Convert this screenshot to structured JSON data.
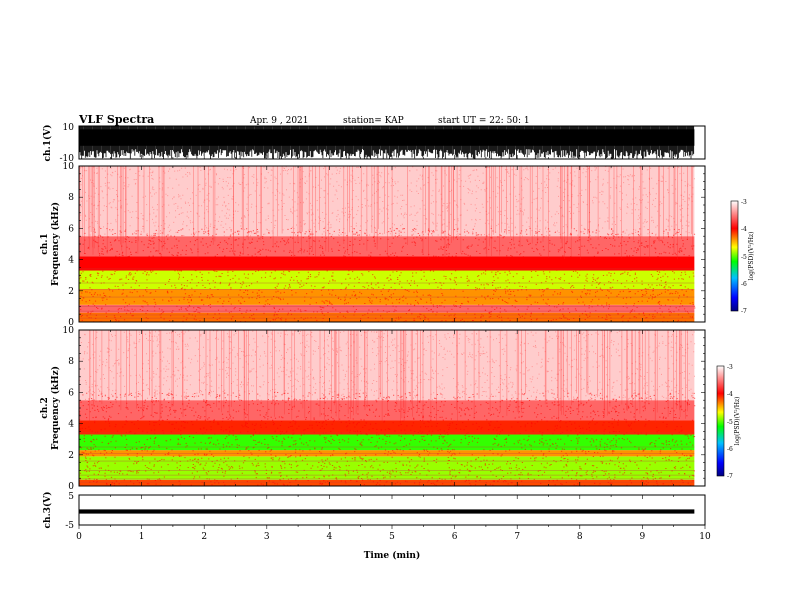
{
  "header": {
    "title": "VLF Spectra",
    "date": "Apr. 9 , 2021",
    "station": "station= KAP",
    "start_ut": "start UT =  22: 50: 1"
  },
  "chart_data": [
    {
      "type": "line",
      "panel": "ch1-waveform",
      "ylabel": "ch.1(V)",
      "ylim": [
        -10,
        10
      ],
      "ytick_labels": [
        "10",
        "-10"
      ],
      "xlim": [
        0,
        10
      ],
      "x_data_end": 9.83,
      "description_of_signal": "dense oscillating waveform, mostly saturated between about -5 and 10 V"
    },
    {
      "type": "heatmap",
      "panel": "ch1-spectrogram",
      "ylabel": "ch.1\nFrequency (kHz)",
      "ylabel_line1": "ch.1",
      "ylabel_line2": "Frequency (kHz)",
      "ylim": [
        0,
        10
      ],
      "yticks": [
        0,
        2,
        4,
        6,
        8,
        10
      ],
      "xlim": [
        0,
        10
      ],
      "x_data_end": 9.83,
      "colorbar": {
        "label": "log(PSD)(V²/Hz)",
        "range": [
          -7,
          -3
        ],
        "tick_labels": [
          "-3",
          "-4",
          "-5",
          "-6",
          "-7"
        ],
        "colors": [
          "#000080",
          "#0000ff",
          "#00c0ff",
          "#00ff00",
          "#ffff00",
          "#ff0000",
          "#ffffff"
        ]
      },
      "bands_khz": [
        {
          "from": 0.0,
          "to": 0.6,
          "level": -4.3
        },
        {
          "from": 0.6,
          "to": 1.1,
          "level": -3.6
        },
        {
          "from": 1.1,
          "to": 2.1,
          "level": -4.4
        },
        {
          "from": 2.1,
          "to": 3.3,
          "level": -4.8
        },
        {
          "from": 3.3,
          "to": 4.2,
          "level": -4.0
        },
        {
          "from": 4.2,
          "to": 5.5,
          "level": -3.6
        },
        {
          "from": 5.5,
          "to": 10.0,
          "level": -3.2
        }
      ]
    },
    {
      "type": "heatmap",
      "panel": "ch2-spectrogram",
      "ylabel": "ch.2\nFrequency (kHz)",
      "ylabel_line1": "ch.2",
      "ylabel_line2": "Frequency (kHz)",
      "ylim": [
        0,
        10
      ],
      "yticks": [
        0,
        2,
        4,
        6,
        8,
        10
      ],
      "xlim": [
        0,
        10
      ],
      "x_data_end": 9.83,
      "colorbar": {
        "label": "log(PSD)(V²/Hz)",
        "range": [
          -7,
          -3
        ],
        "tick_labels": [
          "-3",
          "-4",
          "-5",
          "-6",
          "-7"
        ],
        "colors": [
          "#000080",
          "#0000ff",
          "#00c0ff",
          "#00ff00",
          "#ffff00",
          "#ff0000",
          "#ffffff"
        ]
      },
      "bands_khz": [
        {
          "from": 0.0,
          "to": 0.4,
          "level": -4.2
        },
        {
          "from": 0.4,
          "to": 1.9,
          "level": -4.9
        },
        {
          "from": 1.9,
          "to": 2.3,
          "level": -4.4
        },
        {
          "from": 2.3,
          "to": 3.3,
          "level": -5.1
        },
        {
          "from": 3.3,
          "to": 4.2,
          "level": -4.1
        },
        {
          "from": 4.2,
          "to": 5.5,
          "level": -3.6
        },
        {
          "from": 5.5,
          "to": 10.0,
          "level": -3.2
        }
      ]
    },
    {
      "type": "line",
      "panel": "ch3-waveform",
      "ylabel": "ch.3(V)",
      "ylim": [
        -5,
        5
      ],
      "ytick_labels": [
        "5",
        "-5"
      ],
      "y_band": [
        -1.2,
        0.2
      ],
      "xlim": [
        0,
        10
      ],
      "x_data_end": 9.83,
      "xlabel": "Time (min)",
      "xticks": [
        0,
        1,
        2,
        3,
        4,
        5,
        6,
        7,
        8,
        9,
        10
      ]
    }
  ]
}
